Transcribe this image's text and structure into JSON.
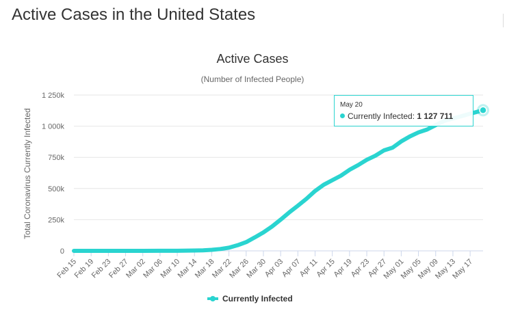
{
  "page": {
    "heading": "Active Cases in the United States"
  },
  "colors": {
    "series": "#2ad4d0",
    "grid": "#e6e6e6",
    "axis": "#ccd6eb"
  },
  "tooltip": {
    "date": "May 20",
    "series_name": "Currently Infected",
    "value_text": "1 127 711"
  },
  "chart_data": {
    "type": "line",
    "title": "Active Cases",
    "subtitle": "(Number of Infected People)",
    "xlabel": "",
    "ylabel": "Total Coronavirus Currently Infected",
    "x_start": "Feb 15",
    "x_end": "May 20",
    "x_ticks": [
      "Feb 15",
      "Feb 19",
      "Feb 23",
      "Feb 27",
      "Mar 02",
      "Mar 06",
      "Mar 10",
      "Mar 14",
      "Mar 18",
      "Mar 22",
      "Mar 26",
      "Mar 30",
      "Apr 03",
      "Apr 07",
      "Apr 11",
      "Apr 15",
      "Apr 19",
      "Apr 23",
      "Apr 27",
      "May 01",
      "May 05",
      "May 09",
      "May 13",
      "May 17"
    ],
    "y_ticks": [
      "0",
      "250k",
      "500k",
      "750k",
      "1 000k",
      "1 250k"
    ],
    "ylim": [
      0,
      1250000
    ],
    "grid": true,
    "legend_position": "bottom-center",
    "series": [
      {
        "name": "Currently Infected",
        "x": [
          "Feb 15",
          "Feb 19",
          "Feb 23",
          "Feb 27",
          "Mar 02",
          "Mar 06",
          "Mar 10",
          "Mar 14",
          "Mar 16",
          "Mar 18",
          "Mar 20",
          "Mar 22",
          "Mar 24",
          "Mar 26",
          "Mar 28",
          "Mar 30",
          "Apr 01",
          "Apr 03",
          "Apr 05",
          "Apr 07",
          "Apr 09",
          "Apr 11",
          "Apr 13",
          "Apr 15",
          "Apr 17",
          "Apr 19",
          "Apr 21",
          "Apr 23",
          "Apr 25",
          "Apr 27",
          "Apr 29",
          "May 01",
          "May 03",
          "May 05",
          "May 07",
          "May 09",
          "May 11",
          "May 13",
          "May 15",
          "May 17",
          "May 20"
        ],
        "values": [
          13,
          13,
          14,
          14,
          70,
          300,
          800,
          2500,
          4200,
          8000,
          15000,
          25000,
          45000,
          70000,
          108000,
          148000,
          195000,
          250000,
          308000,
          362000,
          418000,
          480000,
          530000,
          567000,
          603000,
          650000,
          688000,
          730000,
          763000,
          806000,
          828000,
          878000,
          918000,
          950000,
          973000,
          1008000,
          1043000,
          1062000,
          1080000,
          1100000,
          1127711
        ]
      }
    ]
  }
}
